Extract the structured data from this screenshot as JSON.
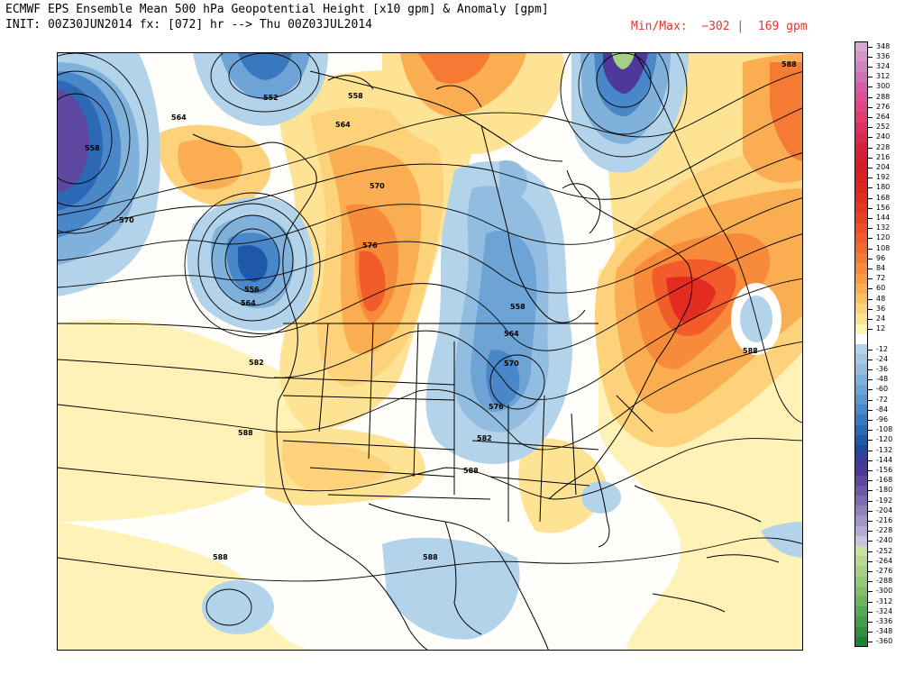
{
  "header": {
    "title": "ECMWF EPS Ensemble Mean 500 hPa Geopotential Height [x10 gpm] & Anomaly [gpm]",
    "init_line": "INIT: 00Z30JUN2014 fx: [072] hr --> Thu 00Z03JUL2014",
    "minmax": "Min/Max:  −302 |  169 gpm"
  },
  "map": {
    "contour_labels": [
      {
        "id": "c552",
        "text": "552"
      },
      {
        "id": "c558a",
        "text": "558"
      },
      {
        "id": "c564a",
        "text": "564"
      },
      {
        "id": "c564b",
        "text": "564"
      },
      {
        "id": "c558b",
        "text": "558"
      },
      {
        "id": "c570a",
        "text": "570"
      },
      {
        "id": "c570b",
        "text": "570"
      },
      {
        "id": "c576a",
        "text": "576"
      },
      {
        "id": "c556",
        "text": "556"
      },
      {
        "id": "c564c",
        "text": "564"
      },
      {
        "id": "c582a",
        "text": "582"
      },
      {
        "id": "c558c",
        "text": "558"
      },
      {
        "id": "c564d",
        "text": "564"
      },
      {
        "id": "c570c",
        "text": "570"
      },
      {
        "id": "c576b",
        "text": "576"
      },
      {
        "id": "c582b",
        "text": "582"
      },
      {
        "id": "c588a",
        "text": "588"
      },
      {
        "id": "c588b",
        "text": "588"
      },
      {
        "id": "c588c",
        "text": "588"
      },
      {
        "id": "c588d",
        "text": "588"
      },
      {
        "id": "c588e",
        "text": "588"
      },
      {
        "id": "c588f",
        "text": "588"
      }
    ]
  },
  "colorbar": {
    "entries": [
      {
        "label": "348",
        "color": "#d9a8cf"
      },
      {
        "label": "336",
        "color": "#d596c7"
      },
      {
        "label": "324",
        "color": "#d184bf"
      },
      {
        "label": "312",
        "color": "#d070b5"
      },
      {
        "label": "300",
        "color": "#d65ca8"
      },
      {
        "label": "288",
        "color": "#de4f96"
      },
      {
        "label": "276",
        "color": "#e14484"
      },
      {
        "label": "264",
        "color": "#e03a6f"
      },
      {
        "label": "252",
        "color": "#dd3060"
      },
      {
        "label": "240",
        "color": "#d9294c"
      },
      {
        "label": "228",
        "color": "#d7223e"
      },
      {
        "label": "216",
        "color": "#d61f30"
      },
      {
        "label": "204",
        "color": "#d41d25"
      },
      {
        "label": "192",
        "color": "#d91f1f"
      },
      {
        "label": "180",
        "color": "#e02520"
      },
      {
        "label": "168",
        "color": "#e42b21"
      },
      {
        "label": "156",
        "color": "#e63522"
      },
      {
        "label": "144",
        "color": "#ea4024"
      },
      {
        "label": "132",
        "color": "#ee4e27"
      },
      {
        "label": "120",
        "color": "#f15c2a"
      },
      {
        "label": "108",
        "color": "#f36a2e"
      },
      {
        "label": "96",
        "color": "#f57a33"
      },
      {
        "label": "84",
        "color": "#f78b3a"
      },
      {
        "label": "72",
        "color": "#f99c44"
      },
      {
        "label": "60",
        "color": "#fbad52"
      },
      {
        "label": "48",
        "color": "#fcc064"
      },
      {
        "label": "36",
        "color": "#fdd27a"
      },
      {
        "label": "24",
        "color": "#fee394"
      },
      {
        "label": "12",
        "color": "#fef2b6"
      },
      {
        "label": "",
        "color": "#ffffff"
      },
      {
        "label": "-12",
        "color": "#b3d3ea"
      },
      {
        "label": "-24",
        "color": "#a3c8e4"
      },
      {
        "label": "-36",
        "color": "#92bde0"
      },
      {
        "label": "-48",
        "color": "#80b1db"
      },
      {
        "label": "-60",
        "color": "#6da4d5"
      },
      {
        "label": "-72",
        "color": "#5b96cf"
      },
      {
        "label": "-84",
        "color": "#4987c8"
      },
      {
        "label": "-96",
        "color": "#3978bf"
      },
      {
        "label": "-108",
        "color": "#2b68b5"
      },
      {
        "label": "-120",
        "color": "#2058a8"
      },
      {
        "label": "-132",
        "color": "#1f4a9b"
      },
      {
        "label": "-144",
        "color": "#3c3b9a"
      },
      {
        "label": "-156",
        "color": "#4e389a"
      },
      {
        "label": "-168",
        "color": "#5e479f"
      },
      {
        "label": "-180",
        "color": "#6e58a8"
      },
      {
        "label": "-192",
        "color": "#7e6bb2"
      },
      {
        "label": "-204",
        "color": "#8f7fbd"
      },
      {
        "label": "-216",
        "color": "#a194c8"
      },
      {
        "label": "-228",
        "color": "#b4aad3"
      },
      {
        "label": "-240",
        "color": "#c8c2df"
      },
      {
        "label": "-252",
        "color": "#c9e2a2"
      },
      {
        "label": "-264",
        "color": "#b7da93"
      },
      {
        "label": "-276",
        "color": "#a5d184"
      },
      {
        "label": "-288",
        "color": "#93c877"
      },
      {
        "label": "-300",
        "color": "#80be6a"
      },
      {
        "label": "-312",
        "color": "#6cb45f"
      },
      {
        "label": "-324",
        "color": "#57a853"
      },
      {
        "label": "-336",
        "color": "#439c48"
      },
      {
        "label": "-348",
        "color": "#2f8f3e"
      },
      {
        "label": "-360",
        "color": "#1d8134"
      }
    ]
  }
}
